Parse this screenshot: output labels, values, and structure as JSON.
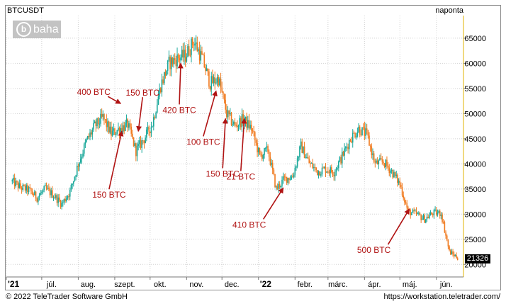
{
  "header": {
    "symbol": "BTCUSDT",
    "interval": "naponta"
  },
  "logo": {
    "icon": "b",
    "text": "baha"
  },
  "last_price": "21326",
  "footer": {
    "copyright": "© 2022 TeleTrader Software GmbH",
    "url": "https://workstation.teletrader.com/"
  },
  "colors": {
    "up": "#1aa89a",
    "down": "#f07a1f",
    "annotation": "#b01313",
    "grid": "#d2d2d2"
  },
  "chart_data": {
    "type": "candlestick",
    "x_tick_labels": [
      "'21",
      "júl.",
      "aug.",
      "szept.",
      "okt.",
      "nov.",
      "dec.",
      "'22",
      "febr.",
      "márc.",
      "ápr.",
      "máj.",
      "jún."
    ],
    "y_ticks": [
      20000,
      25000,
      30000,
      35000,
      40000,
      45000,
      50000,
      55000,
      60000,
      65000
    ],
    "y_tick_labels": [
      "20000",
      "25000",
      "30000",
      "35000",
      "40000",
      "45000",
      "50000",
      "55000",
      "60000",
      "65000"
    ],
    "ylim": [
      17500,
      69500
    ],
    "grid": true,
    "x": [
      "2021-06-06",
      "2021-06-13",
      "2021-06-20",
      "2021-06-27",
      "2021-07-04",
      "2021-07-11",
      "2021-07-18",
      "2021-07-25",
      "2021-08-01",
      "2021-08-08",
      "2021-08-15",
      "2021-08-22",
      "2021-08-29",
      "2021-09-05",
      "2021-09-12",
      "2021-09-19",
      "2021-09-26",
      "2021-10-03",
      "2021-10-10",
      "2021-10-17",
      "2021-10-24",
      "2021-10-31",
      "2021-11-07",
      "2021-11-14",
      "2021-11-21",
      "2021-11-28",
      "2021-12-05",
      "2021-12-12",
      "2021-12-19",
      "2021-12-26",
      "2022-01-02",
      "2022-01-09",
      "2022-01-16",
      "2022-01-23",
      "2022-01-30",
      "2022-02-06",
      "2022-02-13",
      "2022-02-20",
      "2022-02-27",
      "2022-03-06",
      "2022-03-13",
      "2022-03-20",
      "2022-03-27",
      "2022-04-03",
      "2022-04-10",
      "2022-04-17",
      "2022-04-24",
      "2022-05-01",
      "2022-05-08",
      "2022-05-15",
      "2022-05-22",
      "2022-05-29",
      "2022-06-05",
      "2022-06-12",
      "2022-06-19"
    ],
    "close": [
      36500,
      35300,
      34800,
      33300,
      35000,
      33800,
      32000,
      34500,
      40000,
      44500,
      47500,
      49200,
      46000,
      47000,
      47800,
      42600,
      45000,
      48000,
      55600,
      60000,
      61000,
      61500,
      64500,
      61000,
      56000,
      57000,
      50000,
      47500,
      48900,
      47000,
      41500,
      42800,
      35000,
      37000,
      37500,
      43500,
      40200,
      38500,
      39000,
      38400,
      41500,
      45000,
      47000,
      45800,
      40000,
      40400,
      38500,
      36000,
      30500,
      30000,
      29000,
      30200,
      30200,
      22500,
      21326
    ],
    "annotations": [
      {
        "label": "400 BTC",
        "date": "2021-09-06",
        "price": 52000
      },
      {
        "label": "150 BTC",
        "date": "2021-09-07",
        "price": 46500
      },
      {
        "label": "150 BTC",
        "date": "2021-09-21",
        "price": 46500
      },
      {
        "label": "420 BTC",
        "date": "2021-10-27",
        "price": 60000
      },
      {
        "label": "100 BTC",
        "date": "2021-11-26",
        "price": 54500
      },
      {
        "label": "150 BTC",
        "date": "2021-12-04",
        "price": 49000
      },
      {
        "label": "21 BTC",
        "date": "2021-12-20",
        "price": 49000
      },
      {
        "label": "410 BTC",
        "date": "2022-01-22",
        "price": 35200
      },
      {
        "label": "500 BTC",
        "date": "2022-05-09",
        "price": 31000
      }
    ]
  }
}
